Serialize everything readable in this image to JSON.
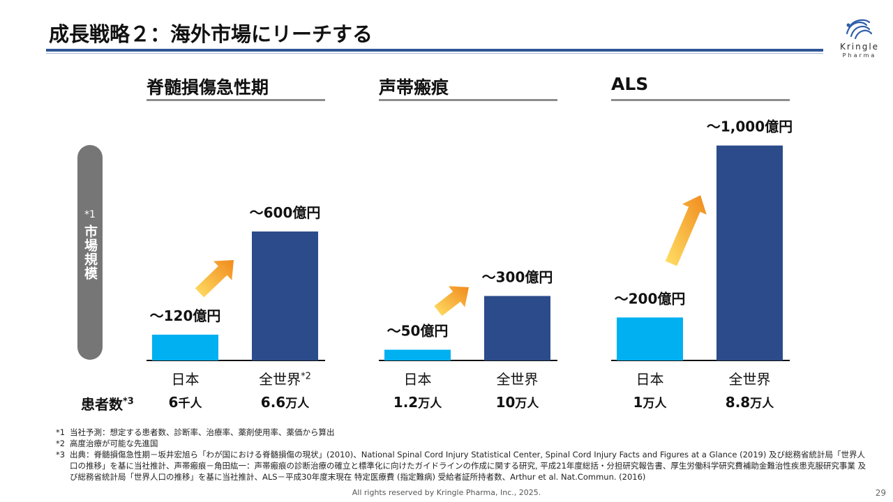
{
  "title": "成長戦略２：海外市場にリーチする",
  "logo": {
    "name": "Kringle",
    "sub": "Pharma"
  },
  "y_axis": {
    "label_mark": "*1",
    "label": "市場規模"
  },
  "patients_label": "患者数",
  "patients_label_sup": "*3",
  "colors": {
    "japan": "#00b0f0",
    "world": "#2b4b8a",
    "accent_rule": "#2f5597",
    "arrow_start": "#ffe066",
    "arrow_end": "#f08a1c"
  },
  "chart_data": [
    {
      "type": "bar",
      "title": "脊髄損傷急性期",
      "categories": [
        "日本",
        "全世界"
      ],
      "category_sup": [
        "",
        "*2"
      ],
      "values": [
        120,
        600
      ],
      "value_labels": [
        "〜120億円",
        "〜600億円"
      ],
      "patients_num": [
        "6",
        "6.6"
      ],
      "patients_unit": [
        "千人",
        "万人"
      ]
    },
    {
      "type": "bar",
      "title": "声帯瘢痕",
      "categories": [
        "日本",
        "全世界"
      ],
      "category_sup": [
        "",
        ""
      ],
      "values": [
        50,
        300
      ],
      "value_labels": [
        "〜50億円",
        "〜300億円"
      ],
      "patients_num": [
        "1.2",
        "10"
      ],
      "patients_unit": [
        "万人",
        "万人"
      ]
    },
    {
      "type": "bar",
      "title": "ALS",
      "categories": [
        "日本",
        "全世界"
      ],
      "category_sup": [
        "",
        ""
      ],
      "values": [
        200,
        1000
      ],
      "value_labels": [
        "〜200億円",
        "〜1,000億円"
      ],
      "patients_num": [
        "1",
        "8.8"
      ],
      "patients_unit": [
        "万人",
        "万人"
      ]
    }
  ],
  "notes": [
    {
      "mark": "*1",
      "text": "当社予測：想定する患者数、診断率、治療率、薬剤使用率、薬価から算出"
    },
    {
      "mark": "*2",
      "text": "高度治療が可能な先進国"
    },
    {
      "mark": "*3",
      "text": "出典：脊髄損傷急性期－坂井宏旭ら「わが国における脊髄損傷の現状」(2010)、National Spinal Cord Injury Statistical Center, Spinal Cord Injury Facts and Figures at a Glance (2019) 及び総務省統計局「世界人口の推移」を基に当社推計、声帯瘢痕－角田紘一：声帯瘢痕の診断治療の確立と標準化に向けたガイドラインの作成に関する研究, 平成21年度総括・分担研究報告書、厚生労働科学研究費補助金難治性疾患克服研究事業 及び総務省統計局「世界人口の推移」を基に当社推計、ALS－平成30年度末現在 特定医療費 (指定難病) 受給者証所持者数、Arthur et al. Nat.Commun. (2016)"
    }
  ],
  "footer": "All rights reserved by Kringle Pharma, Inc., 2025.",
  "page_number": "29"
}
